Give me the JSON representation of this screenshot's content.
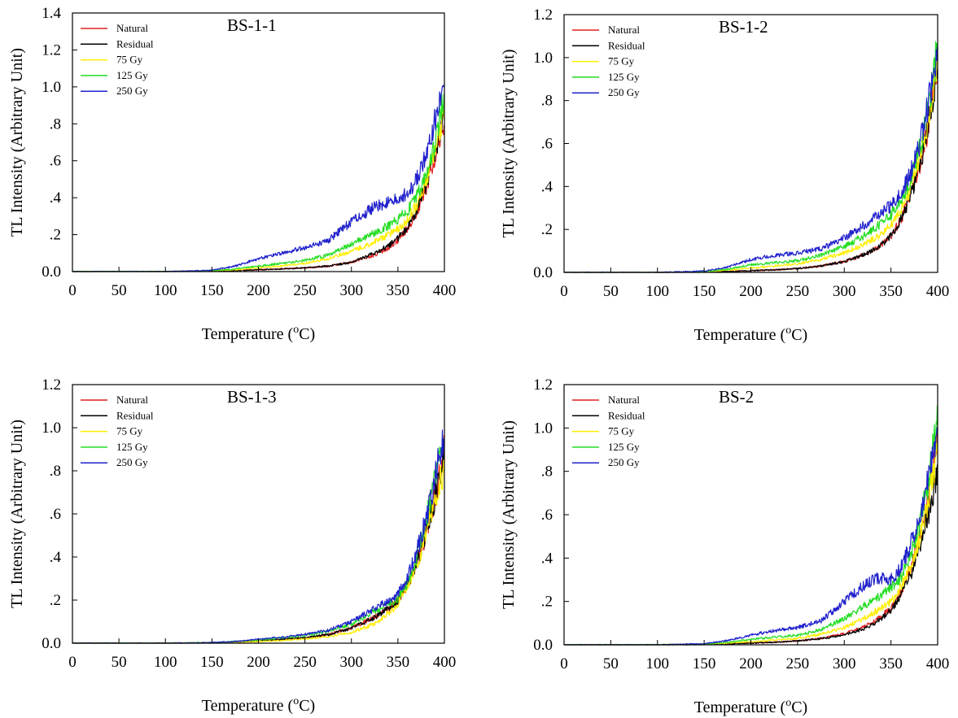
{
  "chart_data": [
    {
      "type": "line",
      "title": "BS-1-1",
      "xlabel": "Temperature (oC)",
      "ylabel": "TL Intensity (Arbitrary Unit)",
      "xlim": [
        0,
        400
      ],
      "ylim": [
        0,
        1.4
      ],
      "xticks": [
        "0",
        "50",
        "100",
        "150",
        "200",
        "250",
        "300",
        "350",
        "400"
      ],
      "yticks": [
        "0.0",
        ".2",
        ".4",
        ".6",
        ".8",
        "1.0",
        "1.2",
        "1.4"
      ],
      "grid": false,
      "legend_position": "top-left",
      "x": [
        0,
        50,
        100,
        150,
        175,
        200,
        225,
        250,
        275,
        300,
        325,
        340,
        350,
        360,
        370,
        380,
        390,
        400
      ],
      "series": [
        {
          "name": "Natural",
          "color": "#e02020",
          "values": [
            0,
            0,
            0,
            0.003,
            0.006,
            0.01,
            0.015,
            0.02,
            0.03,
            0.05,
            0.09,
            0.13,
            0.17,
            0.23,
            0.32,
            0.45,
            0.62,
            0.82
          ]
        },
        {
          "name": "Residual",
          "color": "#000000",
          "values": [
            0,
            0,
            0,
            0.003,
            0.006,
            0.01,
            0.014,
            0.02,
            0.03,
            0.05,
            0.1,
            0.14,
            0.18,
            0.24,
            0.33,
            0.46,
            0.63,
            0.85
          ]
        },
        {
          "name": "75 Gy",
          "color": "#ffee00",
          "values": [
            0,
            0,
            0,
            0.004,
            0.01,
            0.02,
            0.03,
            0.045,
            0.07,
            0.11,
            0.16,
            0.2,
            0.23,
            0.28,
            0.36,
            0.48,
            0.65,
            0.88
          ]
        },
        {
          "name": "125 Gy",
          "color": "#22dd22",
          "values": [
            0,
            0,
            0,
            0.005,
            0.015,
            0.03,
            0.045,
            0.06,
            0.09,
            0.15,
            0.21,
            0.25,
            0.28,
            0.33,
            0.4,
            0.52,
            0.7,
            0.95
          ]
        },
        {
          "name": "250 Gy",
          "color": "#2020cc",
          "values": [
            0,
            0,
            0,
            0.007,
            0.03,
            0.07,
            0.1,
            0.13,
            0.17,
            0.27,
            0.35,
            0.38,
            0.39,
            0.42,
            0.5,
            0.62,
            0.82,
            1.1
          ]
        }
      ]
    },
    {
      "type": "line",
      "title": "BS-1-2",
      "xlabel": "Temperature (oC)",
      "ylabel": "TL Intensity (Arbitrary Unit)",
      "xlim": [
        0,
        400
      ],
      "ylim": [
        0,
        1.2
      ],
      "xticks": [
        "0",
        "50",
        "100",
        "150",
        "200",
        "250",
        "300",
        "350",
        "400"
      ],
      "yticks": [
        "0.0",
        ".2",
        ".4",
        ".6",
        ".8",
        "1.0",
        "1.2"
      ],
      "grid": false,
      "legend_position": "top-left",
      "x": [
        0,
        50,
        100,
        150,
        175,
        200,
        225,
        250,
        275,
        300,
        325,
        340,
        350,
        360,
        370,
        380,
        390,
        400
      ],
      "series": [
        {
          "name": "Natural",
          "color": "#e02020",
          "values": [
            0,
            0,
            0,
            0.002,
            0.004,
            0.008,
            0.012,
            0.018,
            0.03,
            0.05,
            0.09,
            0.13,
            0.17,
            0.24,
            0.34,
            0.48,
            0.68,
            0.95
          ]
        },
        {
          "name": "Residual",
          "color": "#000000",
          "values": [
            0,
            0,
            0,
            0.002,
            0.004,
            0.008,
            0.012,
            0.018,
            0.03,
            0.05,
            0.09,
            0.13,
            0.17,
            0.24,
            0.34,
            0.48,
            0.68,
            0.95
          ]
        },
        {
          "name": "75 Gy",
          "color": "#ffee00",
          "values": [
            0,
            0,
            0,
            0.003,
            0.01,
            0.02,
            0.03,
            0.04,
            0.06,
            0.09,
            0.14,
            0.18,
            0.22,
            0.28,
            0.38,
            0.52,
            0.72,
            1.0
          ]
        },
        {
          "name": "125 Gy",
          "color": "#22dd22",
          "values": [
            0,
            0,
            0,
            0.004,
            0.015,
            0.035,
            0.045,
            0.055,
            0.08,
            0.12,
            0.18,
            0.23,
            0.27,
            0.33,
            0.42,
            0.56,
            0.76,
            1.05
          ]
        },
        {
          "name": "250 Gy",
          "color": "#2020cc",
          "values": [
            0,
            0,
            0,
            0.006,
            0.025,
            0.06,
            0.08,
            0.09,
            0.11,
            0.16,
            0.23,
            0.28,
            0.31,
            0.36,
            0.45,
            0.58,
            0.78,
            1.05
          ]
        }
      ]
    },
    {
      "type": "line",
      "title": "BS-1-3",
      "xlabel": "Temperature (oC)",
      "ylabel": "TL Intensity (Arbitrary Unit)",
      "xlim": [
        0,
        400
      ],
      "ylim": [
        0,
        1.2
      ],
      "xticks": [
        "0",
        "50",
        "100",
        "150",
        "200",
        "250",
        "300",
        "350",
        "400"
      ],
      "yticks": [
        "0.0",
        ".2",
        ".4",
        ".6",
        ".8",
        "1.0",
        "1.2"
      ],
      "grid": false,
      "legend_position": "top-left",
      "x": [
        0,
        50,
        100,
        150,
        175,
        200,
        225,
        250,
        275,
        300,
        325,
        340,
        350,
        360,
        370,
        380,
        390,
        400
      ],
      "series": [
        {
          "name": "Natural",
          "color": "#e02020",
          "values": [
            0,
            0,
            0,
            0.002,
            0.005,
            0.01,
            0.018,
            0.025,
            0.04,
            0.07,
            0.12,
            0.16,
            0.2,
            0.27,
            0.37,
            0.5,
            0.68,
            0.9
          ]
        },
        {
          "name": "Residual",
          "color": "#000000",
          "values": [
            0,
            0,
            0,
            0.002,
            0.005,
            0.01,
            0.018,
            0.025,
            0.04,
            0.07,
            0.12,
            0.16,
            0.2,
            0.27,
            0.37,
            0.5,
            0.68,
            0.9
          ]
        },
        {
          "name": "75 Gy",
          "color": "#ffee00",
          "values": [
            0,
            0,
            0,
            0.002,
            0.004,
            0.008,
            0.012,
            0.02,
            0.03,
            0.05,
            0.09,
            0.14,
            0.18,
            0.26,
            0.36,
            0.5,
            0.66,
            0.82
          ]
        },
        {
          "name": "125 Gy",
          "color": "#22dd22",
          "values": [
            0,
            0,
            0,
            0.003,
            0.008,
            0.015,
            0.025,
            0.035,
            0.055,
            0.09,
            0.15,
            0.18,
            0.21,
            0.28,
            0.4,
            0.56,
            0.78,
            1.0
          ]
        },
        {
          "name": "250 Gy",
          "color": "#2020cc",
          "values": [
            0,
            0,
            0,
            0.003,
            0.008,
            0.018,
            0.028,
            0.04,
            0.06,
            0.1,
            0.16,
            0.2,
            0.23,
            0.3,
            0.42,
            0.57,
            0.77,
            0.98
          ]
        }
      ]
    },
    {
      "type": "line",
      "title": "BS-2",
      "xlabel": "Temperature (oC)",
      "ylabel": "TL Intensity (Arbitrary Unit)",
      "xlim": [
        0,
        400
      ],
      "ylim": [
        0,
        1.2
      ],
      "xticks": [
        "0",
        "50",
        "100",
        "150",
        "200",
        "250",
        "300",
        "350",
        "400"
      ],
      "yticks": [
        "0.0",
        ".2",
        ".4",
        ".6",
        ".8",
        "1.0",
        "1.2"
      ],
      "grid": false,
      "legend_position": "top-left",
      "x": [
        0,
        50,
        100,
        150,
        175,
        200,
        225,
        250,
        275,
        300,
        325,
        340,
        350,
        360,
        370,
        380,
        390,
        400
      ],
      "series": [
        {
          "name": "Natural",
          "color": "#e02020",
          "values": [
            0,
            0,
            0,
            0.002,
            0.004,
            0.008,
            0.012,
            0.018,
            0.03,
            0.05,
            0.09,
            0.13,
            0.17,
            0.24,
            0.34,
            0.48,
            0.68,
            0.95
          ]
        },
        {
          "name": "Residual",
          "color": "#000000",
          "values": [
            0,
            0,
            0,
            0.002,
            0.004,
            0.008,
            0.012,
            0.018,
            0.028,
            0.045,
            0.08,
            0.12,
            0.16,
            0.22,
            0.31,
            0.44,
            0.6,
            0.8
          ]
        },
        {
          "name": "75 Gy",
          "color": "#ffee00",
          "values": [
            0,
            0,
            0,
            0.003,
            0.008,
            0.015,
            0.022,
            0.03,
            0.05,
            0.08,
            0.13,
            0.17,
            0.2,
            0.26,
            0.35,
            0.48,
            0.66,
            0.9
          ]
        },
        {
          "name": "125 Gy",
          "color": "#22dd22",
          "values": [
            0,
            0,
            0,
            0.004,
            0.012,
            0.025,
            0.035,
            0.045,
            0.07,
            0.12,
            0.19,
            0.23,
            0.26,
            0.31,
            0.4,
            0.54,
            0.75,
            1.05
          ]
        },
        {
          "name": "250 Gy",
          "color": "#2020cc",
          "values": [
            0,
            0,
            0,
            0.005,
            0.02,
            0.045,
            0.065,
            0.08,
            0.11,
            0.2,
            0.29,
            0.31,
            0.3,
            0.35,
            0.45,
            0.58,
            0.76,
            1.0
          ]
        }
      ]
    }
  ]
}
